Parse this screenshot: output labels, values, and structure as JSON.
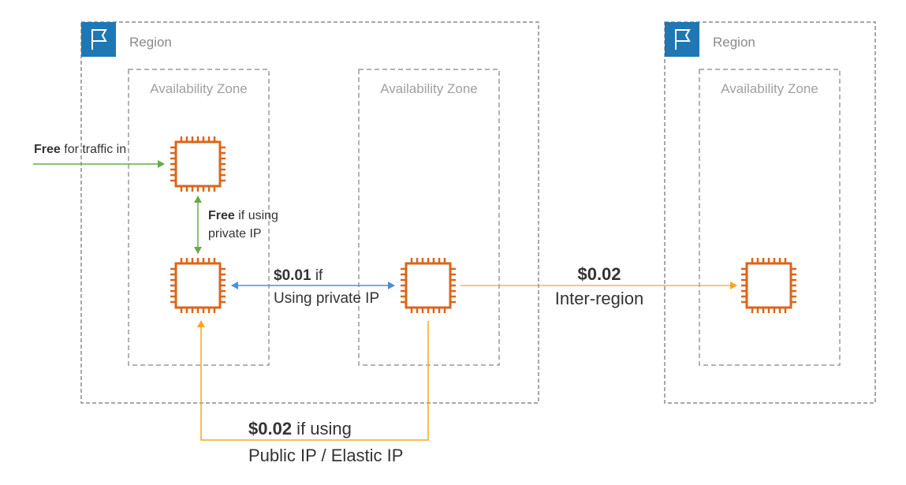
{
  "colors": {
    "region_flag": "#1f77b4",
    "instance": "#d9661b",
    "free_arrow": "#6aaa46",
    "private_ip_arrow": "#4a90d9",
    "paid_arrow": "#f5a623",
    "box_border": "#8c8c8c"
  },
  "icons": {
    "region": "flag-icon",
    "instance": "ec2-instance-icon"
  },
  "regions": [
    {
      "label": "Region",
      "availability_zones": [
        {
          "label": "Availability Zone"
        },
        {
          "label": "Availability Zone"
        }
      ]
    },
    {
      "label": "Region",
      "availability_zones": [
        {
          "label": "Availability Zone"
        }
      ]
    }
  ],
  "annotations": {
    "traffic_in": {
      "bold": "Free",
      "rest": " for traffic in"
    },
    "same_az": {
      "bold": "Free",
      "rest": " if using",
      "line2": "private IP"
    },
    "cross_az_private": {
      "bold": "$0.01",
      "rest": " if",
      "line2": "Using private IP"
    },
    "inter_region": {
      "bold": "$0.02",
      "line2": "Inter-region"
    },
    "public_ip": {
      "bold": "$0.02",
      "rest": " if using",
      "line2": "Public IP / Elastic IP"
    }
  }
}
